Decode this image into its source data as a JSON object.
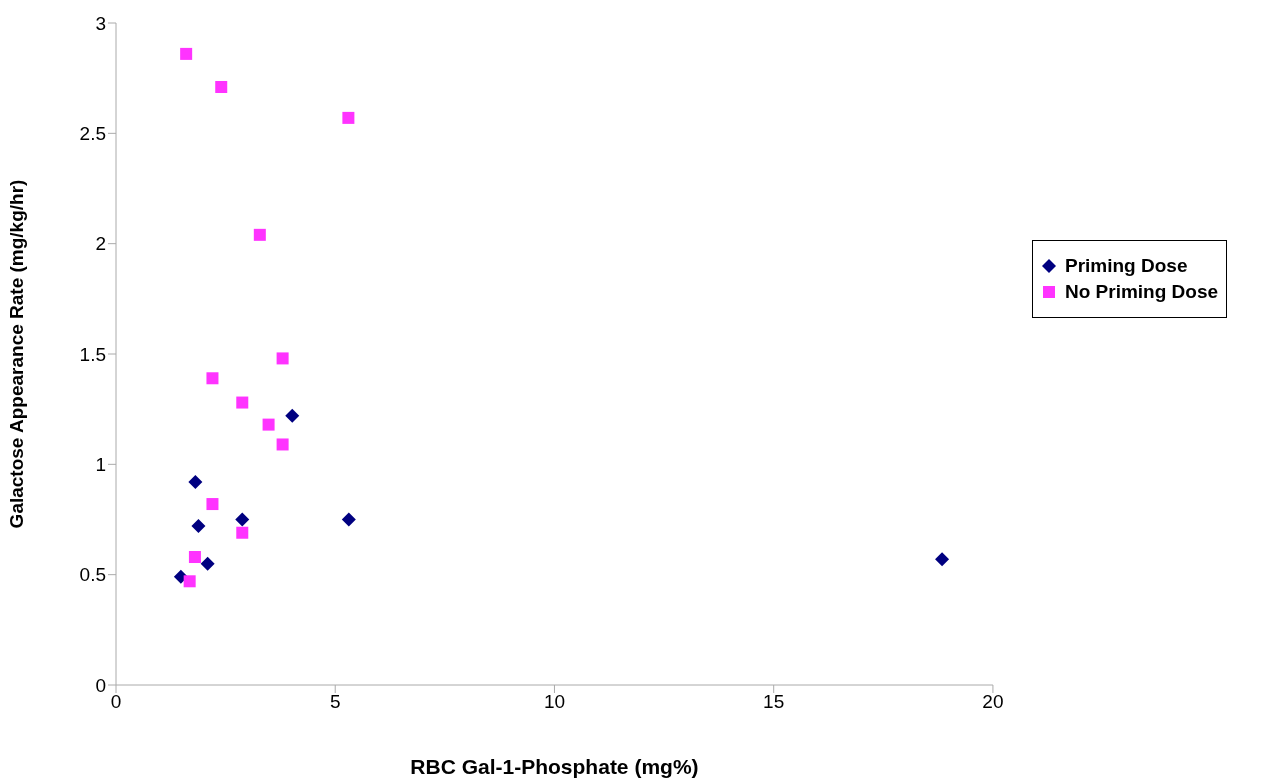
{
  "chart_data": {
    "type": "scatter",
    "xlabel": "RBC Gal-1-Phosphate (mg%)",
    "ylabel": "Galactose Appearance Rate (mg/kg/hr)",
    "xlim": [
      0,
      20
    ],
    "xticks": [
      0,
      5,
      10,
      15,
      20
    ],
    "ylim": [
      0,
      3
    ],
    "yticks": [
      0,
      0.5,
      1,
      1.5,
      2,
      2.5,
      3
    ],
    "grid": false,
    "legend": "right",
    "series": [
      {
        "name": "Priming Dose",
        "color": "#000080",
        "marker": "diamond",
        "x": [
          4.02,
          1.81,
          1.88,
          2.88,
          5.31,
          2.09,
          1.48,
          18.84
        ],
        "values": [
          1.22,
          0.92,
          0.72,
          0.75,
          0.75,
          0.55,
          0.49,
          0.57
        ]
      },
      {
        "name": "No Priming Dose",
        "color": "#ff33ff",
        "marker": "square",
        "x": [
          1.6,
          2.4,
          5.3,
          3.28,
          3.8,
          2.2,
          2.88,
          3.48,
          3.8,
          2.2,
          2.88,
          1.8,
          1.68
        ],
        "values": [
          2.86,
          2.71,
          2.57,
          2.04,
          1.48,
          1.39,
          1.28,
          1.18,
          1.09,
          0.82,
          0.69,
          0.58,
          0.47
        ]
      }
    ]
  }
}
